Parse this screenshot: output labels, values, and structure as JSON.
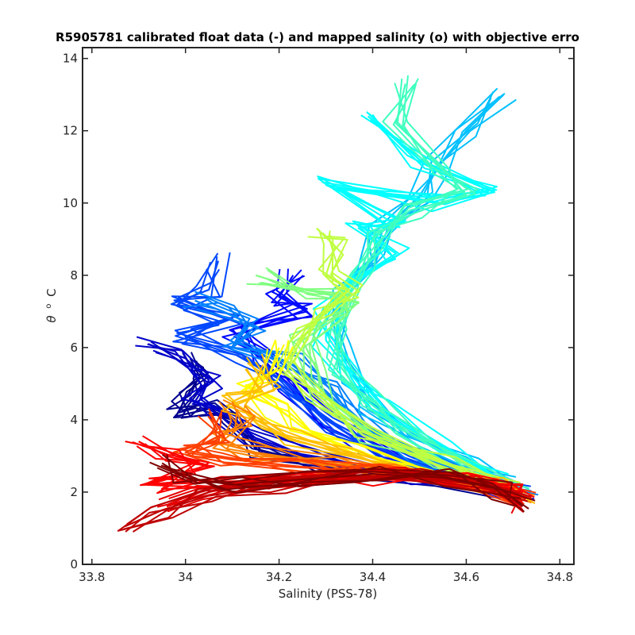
{
  "chart_data": {
    "type": "line",
    "title": "R5905781 calibrated float data (-) and mapped salinity (o) with objective erro",
    "xlabel": "Salinity (PSS-78)",
    "ylabel_symbol": "θ",
    "ylabel_unit": "C",
    "xlim": [
      33.78,
      34.83
    ],
    "ylim": [
      0,
      14.3
    ],
    "xticks": [
      "33.8",
      "34",
      "34.2",
      "34.4",
      "34.6",
      "34.8"
    ],
    "xtick_values": [
      33.8,
      34.0,
      34.2,
      34.4,
      34.6,
      34.8
    ],
    "yticks": [
      "0",
      "2",
      "4",
      "6",
      "8",
      "10",
      "12",
      "14"
    ],
    "ytick_values": [
      0,
      2,
      4,
      6,
      8,
      10,
      12,
      14
    ],
    "grid": false,
    "colormap": "jet",
    "series": [
      {
        "color": "#00008f",
        "points": [
          [
            34.01,
            5.7
          ],
          [
            34.03,
            5.2
          ],
          [
            34.0,
            4.6
          ],
          [
            33.98,
            4.1
          ],
          [
            34.05,
            4.3
          ],
          [
            34.1,
            4.0
          ],
          [
            34.15,
            3.2
          ],
          [
            34.3,
            2.7
          ],
          [
            34.55,
            2.35
          ],
          [
            34.65,
            2.1
          ],
          [
            34.71,
            1.95
          ]
        ]
      },
      {
        "color": "#0000c8",
        "points": [
          [
            33.92,
            6.1
          ],
          [
            34.0,
            5.7
          ],
          [
            34.05,
            5.1
          ],
          [
            34.02,
            4.5
          ],
          [
            34.08,
            4.2
          ],
          [
            34.15,
            3.5
          ],
          [
            34.3,
            2.8
          ],
          [
            34.5,
            2.4
          ],
          [
            34.66,
            2.1
          ],
          [
            34.72,
            1.9
          ]
        ]
      },
      {
        "color": "#0008ff",
        "points": [
          [
            34.23,
            8.0
          ],
          [
            34.2,
            7.4
          ],
          [
            34.26,
            7.0
          ],
          [
            34.1,
            6.5
          ],
          [
            34.15,
            5.8
          ],
          [
            34.22,
            5.0
          ],
          [
            34.3,
            4.0
          ],
          [
            34.4,
            3.2
          ],
          [
            34.55,
            2.5
          ],
          [
            34.7,
            2.0
          ]
        ]
      },
      {
        "color": "#0048ff",
        "points": [
          [
            34.07,
            8.4
          ],
          [
            34.05,
            7.6
          ],
          [
            33.97,
            7.2
          ],
          [
            34.1,
            6.8
          ],
          [
            34.0,
            6.3
          ],
          [
            34.12,
            5.8
          ],
          [
            34.2,
            5.0
          ],
          [
            34.32,
            3.9
          ],
          [
            34.45,
            3.0
          ],
          [
            34.6,
            2.4
          ],
          [
            34.72,
            2.0
          ]
        ]
      },
      {
        "color": "#0080ff",
        "points": [
          [
            34.02,
            7.3
          ],
          [
            34.08,
            7.0
          ],
          [
            34.15,
            6.6
          ],
          [
            34.1,
            6.0
          ],
          [
            34.22,
            5.6
          ],
          [
            34.3,
            4.8
          ],
          [
            34.38,
            3.8
          ],
          [
            34.5,
            3.0
          ],
          [
            34.62,
            2.4
          ],
          [
            34.73,
            2.0
          ]
        ]
      },
      {
        "color": "#00c0ff",
        "points": [
          [
            34.68,
            13.0
          ],
          [
            34.6,
            12.0
          ],
          [
            34.54,
            11.0
          ],
          [
            34.5,
            10.2
          ],
          [
            34.42,
            9.2
          ],
          [
            34.4,
            8.4
          ],
          [
            34.34,
            7.6
          ],
          [
            34.32,
            6.8
          ],
          [
            34.34,
            6.0
          ],
          [
            34.36,
            5.2
          ],
          [
            34.4,
            4.4
          ],
          [
            34.5,
            3.5
          ],
          [
            34.6,
            2.8
          ],
          [
            34.7,
            2.2
          ]
        ]
      },
      {
        "color": "#00ffff",
        "points": [
          [
            34.39,
            12.4
          ],
          [
            34.5,
            11.2
          ],
          [
            34.66,
            10.3
          ],
          [
            34.55,
            10.0
          ],
          [
            34.3,
            10.5
          ],
          [
            34.47,
            9.5
          ],
          [
            34.37,
            9.3
          ],
          [
            34.45,
            8.6
          ],
          [
            34.35,
            7.8
          ],
          [
            34.3,
            7.0
          ],
          [
            34.3,
            6.2
          ],
          [
            34.35,
            5.3
          ],
          [
            34.42,
            4.3
          ],
          [
            34.55,
            3.3
          ],
          [
            34.68,
            2.3
          ]
        ]
      },
      {
        "color": "#40ffbf",
        "points": [
          [
            34.47,
            13.3
          ],
          [
            34.45,
            12.2
          ],
          [
            34.55,
            11.0
          ],
          [
            34.6,
            10.2
          ],
          [
            34.48,
            9.8
          ],
          [
            34.4,
            9.0
          ],
          [
            34.38,
            8.3
          ],
          [
            34.35,
            7.5
          ],
          [
            34.32,
            6.5
          ],
          [
            34.33,
            5.5
          ],
          [
            34.38,
            4.6
          ],
          [
            34.48,
            3.6
          ],
          [
            34.62,
            2.6
          ],
          [
            34.71,
            2.1
          ]
        ]
      },
      {
        "color": "#80ff80",
        "points": [
          [
            34.15,
            8.0
          ],
          [
            34.25,
            7.6
          ],
          [
            34.35,
            7.4
          ],
          [
            34.32,
            6.8
          ],
          [
            34.25,
            6.2
          ],
          [
            34.28,
            5.4
          ],
          [
            34.3,
            4.6
          ],
          [
            34.4,
            3.6
          ],
          [
            34.55,
            2.8
          ],
          [
            34.7,
            2.2
          ]
        ]
      },
      {
        "color": "#bfff40",
        "points": [
          [
            34.28,
            9.3
          ],
          [
            34.32,
            8.8
          ],
          [
            34.3,
            8.0
          ],
          [
            34.35,
            7.6
          ],
          [
            34.3,
            7.0
          ],
          [
            34.25,
            6.3
          ],
          [
            34.22,
            5.5
          ],
          [
            34.28,
            4.7
          ],
          [
            34.38,
            3.7
          ],
          [
            34.55,
            2.8
          ],
          [
            34.7,
            2.2
          ]
        ]
      },
      {
        "color": "#ffff00",
        "points": [
          [
            34.2,
            6.0
          ],
          [
            34.18,
            5.3
          ],
          [
            34.12,
            4.8
          ],
          [
            34.2,
            4.3
          ],
          [
            34.25,
            3.8
          ],
          [
            34.35,
            3.2
          ],
          [
            34.5,
            2.6
          ],
          [
            34.65,
            2.2
          ],
          [
            34.71,
            2.0
          ]
        ]
      },
      {
        "color": "#ffbf00",
        "points": [
          [
            34.15,
            5.6
          ],
          [
            34.18,
            5.0
          ],
          [
            34.1,
            4.5
          ],
          [
            34.15,
            4.0
          ],
          [
            34.22,
            3.5
          ],
          [
            34.35,
            3.0
          ],
          [
            34.5,
            2.55
          ],
          [
            34.66,
            2.15
          ],
          [
            34.72,
            1.9
          ]
        ]
      },
      {
        "color": "#ff8000",
        "points": [
          [
            34.1,
            4.5
          ],
          [
            34.12,
            3.9
          ],
          [
            34.06,
            3.4
          ],
          [
            34.15,
            3.1
          ],
          [
            34.3,
            2.8
          ],
          [
            34.45,
            2.6
          ],
          [
            34.6,
            2.3
          ],
          [
            34.72,
            1.9
          ]
        ]
      },
      {
        "color": "#ff4000",
        "points": [
          [
            34.05,
            4.2
          ],
          [
            34.08,
            3.6
          ],
          [
            34.0,
            3.1
          ],
          [
            34.1,
            2.9
          ],
          [
            34.25,
            2.7
          ],
          [
            34.4,
            2.55
          ],
          [
            34.6,
            2.3
          ],
          [
            34.72,
            1.85
          ]
        ]
      },
      {
        "color": "#ff0000",
        "points": [
          [
            33.9,
            3.4
          ],
          [
            33.96,
            3.0
          ],
          [
            34.05,
            2.7
          ],
          [
            33.92,
            2.2
          ],
          [
            34.1,
            2.3
          ],
          [
            34.25,
            2.35
          ],
          [
            34.4,
            2.4
          ],
          [
            34.58,
            2.35
          ],
          [
            34.7,
            2.1
          ],
          [
            34.72,
            1.7
          ]
        ]
      },
      {
        "color": "#e60000",
        "points": [
          [
            33.96,
            1.6
          ],
          [
            34.05,
            2.0
          ],
          [
            34.15,
            2.3
          ],
          [
            34.3,
            2.4
          ],
          [
            34.45,
            2.45
          ],
          [
            34.6,
            2.35
          ],
          [
            34.7,
            2.0
          ],
          [
            34.72,
            1.6
          ]
        ]
      },
      {
        "color": "#bf0000",
        "points": [
          [
            33.87,
            1.05
          ],
          [
            33.95,
            1.5
          ],
          [
            34.05,
            1.9
          ],
          [
            34.2,
            2.2
          ],
          [
            34.35,
            2.35
          ],
          [
            34.5,
            2.4
          ],
          [
            34.63,
            2.2
          ],
          [
            34.71,
            1.7
          ]
        ]
      },
      {
        "color": "#800000",
        "points": [
          [
            33.95,
            2.8
          ],
          [
            34.0,
            2.4
          ],
          [
            34.1,
            2.2
          ],
          [
            34.25,
            2.35
          ],
          [
            34.4,
            2.5
          ],
          [
            34.55,
            2.4
          ],
          [
            34.68,
            2.05
          ],
          [
            34.72,
            1.6
          ]
        ]
      }
    ]
  }
}
